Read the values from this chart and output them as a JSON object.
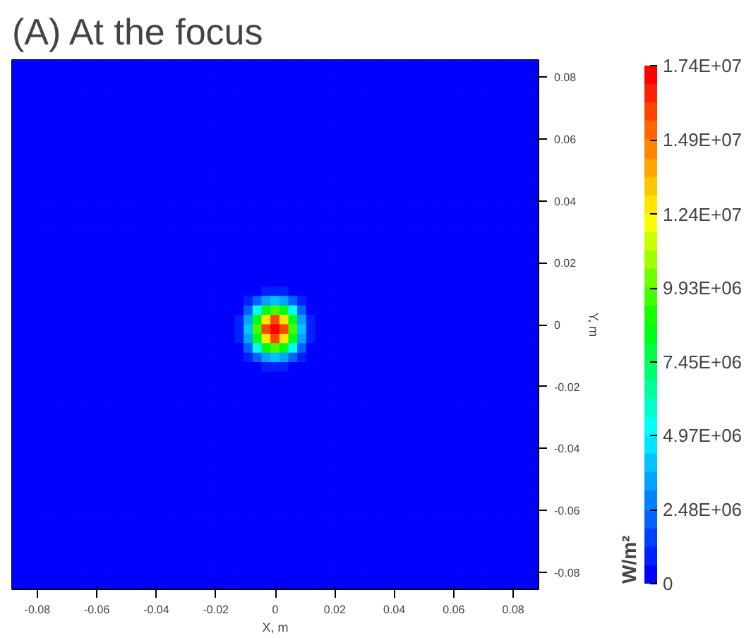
{
  "chart_data": {
    "type": "heatmap",
    "title": "(A) At the focus",
    "xlabel": "X, m",
    "ylabel": "Y, m",
    "clabel": "W/m²",
    "xlim": [
      -0.0885,
      0.0885
    ],
    "ylim": [
      -0.0855,
      0.0855
    ],
    "xticks": [
      -0.08,
      -0.06,
      -0.04,
      -0.02,
      0,
      0.02,
      0.04,
      0.06,
      0.08
    ],
    "yticks": [
      -0.08,
      -0.06,
      -0.04,
      -0.02,
      0,
      0.02,
      0.04,
      0.06,
      0.08
    ],
    "clim": [
      0,
      17400000
    ],
    "cticks": [
      0,
      {
        "value": 2480000,
        "label": "2.48E+06"
      },
      {
        "value": 4970000,
        "label": "4.97E+06"
      },
      {
        "value": 7450000,
        "label": "7.45E+06"
      },
      {
        "value": 9930000,
        "label": "9.93E+06"
      },
      {
        "value": 12400000,
        "label": "1.24E+07"
      },
      {
        "value": 14900000,
        "label": "1.49E+07"
      },
      {
        "value": 17400000,
        "label": "1.74E+07"
      }
    ],
    "cells": [
      [
        0,
        0,
        0,
        0,
        0,
        0,
        0,
        0,
        0,
        0,
        0,
        0,
        0,
        0,
        0,
        0,
        0,
        0,
        0,
        0,
        0,
        0,
        0,
        0,
        0,
        0,
        0,
        0,
        0,
        0,
        0,
        0,
        0,
        0,
        0,
        0,
        0,
        0,
        0,
        0,
        0,
        0,
        0,
        0,
        0,
        0,
        0,
        0,
        0,
        0,
        0,
        0,
        0,
        0,
        0,
        0,
        0,
        0,
        0
      ],
      [
        0,
        0,
        0,
        0,
        0,
        0,
        0,
        0,
        0,
        0,
        0,
        0,
        0,
        0,
        0,
        0,
        0,
        0,
        0,
        0,
        0,
        0,
        0,
        0,
        0,
        0,
        0,
        0,
        0,
        0,
        0,
        0,
        0,
        0,
        0,
        0,
        0,
        0,
        0,
        0,
        0,
        0,
        0,
        0,
        0,
        0,
        0,
        0,
        0,
        0,
        0,
        0,
        0,
        0,
        0,
        0,
        0,
        0,
        0
      ],
      [
        0,
        0,
        0,
        0,
        0,
        0,
        0,
        0,
        0,
        0,
        0,
        0,
        0,
        0,
        0,
        0,
        0,
        0,
        0,
        0,
        0,
        0,
        0,
        0,
        0,
        0,
        0,
        0,
        0,
        0,
        0,
        0,
        0,
        0,
        0,
        0,
        0,
        0,
        0,
        0,
        0,
        0,
        0,
        0,
        0,
        0,
        0,
        0,
        0,
        0,
        0,
        0,
        0,
        0,
        0,
        0,
        0,
        0,
        0
      ],
      [
        0,
        0,
        0,
        0,
        0,
        0,
        0,
        0,
        0,
        0,
        0,
        0,
        0,
        0,
        0,
        0,
        0,
        0,
        0,
        0,
        0,
        0,
        0,
        0,
        0,
        0,
        0,
        0,
        0,
        0,
        0,
        0,
        0,
        0,
        0,
        0,
        0,
        0,
        0,
        0,
        0,
        0,
        0,
        0,
        0,
        0,
        0,
        0,
        0,
        0,
        0,
        0,
        0,
        0,
        0,
        0,
        0,
        0,
        0
      ],
      [
        0,
        0,
        0,
        0,
        0,
        0,
        0,
        0,
        0,
        0,
        0,
        0,
        0,
        0,
        0,
        0,
        0,
        0,
        0,
        0,
        0,
        0,
        0,
        0,
        0,
        0,
        0,
        0,
        0,
        0,
        0,
        0,
        0,
        0,
        0,
        0,
        0,
        0,
        0,
        0,
        0,
        0,
        0,
        0,
        0,
        0,
        0,
        0,
        0,
        0,
        0,
        0,
        0,
        0,
        0,
        0,
        0,
        0,
        0
      ],
      [
        0,
        0,
        0,
        0,
        0,
        0,
        0,
        0,
        0,
        0,
        0,
        0,
        0,
        0,
        0,
        0,
        0,
        0,
        0,
        0,
        0,
        0,
        0,
        0,
        0,
        0,
        0,
        0,
        0,
        0,
        0,
        0,
        0,
        0,
        0,
        0,
        0,
        0,
        0,
        0,
        0,
        0,
        0,
        0,
        0,
        0,
        0,
        0,
        0,
        0,
        0,
        0,
        0,
        0,
        0,
        0,
        0,
        0,
        0
      ],
      [
        0,
        0,
        0,
        0,
        0,
        0,
        0,
        0,
        0,
        0,
        0,
        0,
        0,
        0,
        0,
        0,
        0,
        0,
        0,
        0,
        0,
        0,
        0,
        0,
        0,
        0,
        0,
        0,
        0,
        0,
        0,
        0,
        0,
        0,
        0,
        0,
        0,
        0,
        0,
        0,
        0,
        0,
        0,
        0,
        0,
        0,
        0,
        0,
        0,
        0,
        0,
        0,
        0,
        0,
        0,
        0,
        0,
        0,
        0
      ],
      [
        0,
        0,
        0,
        0,
        0,
        0,
        0,
        0,
        0,
        0,
        0,
        0,
        0,
        0,
        0,
        0,
        0,
        0,
        0,
        0,
        0,
        0,
        0,
        0,
        0,
        0,
        0,
        0,
        0,
        0,
        0,
        0,
        0,
        0,
        0,
        0,
        0,
        0,
        0,
        0,
        0,
        0,
        0,
        0,
        0,
        0,
        0,
        0,
        0,
        0,
        0,
        0,
        0,
        0,
        0,
        0,
        0,
        0,
        0
      ],
      [
        0,
        0,
        0,
        0,
        0,
        0,
        0,
        0,
        0,
        0,
        0,
        0,
        0,
        0,
        0,
        0,
        0,
        0,
        0,
        0,
        0,
        0,
        0,
        0,
        0,
        0,
        0,
        0,
        0,
        0,
        0,
        0,
        0,
        0,
        0,
        0,
        0,
        0,
        0,
        0,
        0,
        0,
        0,
        0,
        0,
        0,
        0,
        0,
        0,
        0,
        0,
        0,
        0,
        0,
        0,
        0,
        0,
        0,
        0
      ],
      [
        0,
        0,
        0,
        0,
        0,
        0,
        0,
        0,
        0,
        0,
        0,
        0,
        0,
        0,
        0,
        0,
        0,
        0,
        0,
        0,
        0,
        0,
        0,
        0,
        0,
        0,
        0,
        0,
        0,
        0,
        0,
        0,
        0,
        0,
        0,
        0,
        0,
        0,
        0,
        0,
        0,
        0,
        0,
        0,
        0,
        0,
        0,
        0,
        0,
        0,
        0,
        0,
        0,
        0,
        0,
        0,
        0,
        0,
        0
      ],
      [
        0,
        0,
        0,
        0,
        0,
        0,
        0,
        0,
        0,
        0,
        0,
        0,
        0,
        0,
        0,
        0,
        0,
        0,
        0,
        0,
        0,
        0,
        0,
        0,
        0,
        0,
        0,
        0,
        0,
        0,
        0,
        0,
        0,
        0,
        0,
        0,
        0,
        0,
        0,
        0,
        0,
        0,
        0,
        0,
        0,
        0,
        0,
        0,
        0,
        0,
        0,
        0,
        0,
        0,
        0,
        0,
        0,
        0,
        0
      ],
      [
        0,
        0,
        0,
        0,
        0,
        0,
        0,
        0,
        0,
        0,
        0,
        0,
        0,
        0,
        0,
        0,
        0,
        0,
        0,
        0,
        0,
        0,
        0,
        0,
        0,
        0,
        0,
        0,
        0,
        0,
        0,
        0,
        0,
        0,
        0,
        0,
        0,
        0,
        0,
        0,
        0,
        0,
        0,
        0,
        0,
        0,
        0,
        0,
        0,
        0,
        0,
        0,
        0,
        0,
        0,
        0,
        0,
        0,
        0
      ],
      [
        0,
        0,
        0,
        0,
        0,
        0,
        0,
        0,
        0,
        0,
        0,
        0,
        0,
        0,
        0,
        0,
        0,
        0,
        0,
        0,
        0,
        0,
        0,
        0,
        0,
        0,
        0,
        0,
        0,
        0,
        0,
        0,
        0,
        0,
        0,
        0,
        0,
        0,
        0,
        0,
        0,
        0,
        0,
        0,
        0,
        0,
        0,
        0,
        0,
        0,
        0,
        0,
        0,
        0,
        0,
        0,
        0,
        0,
        0
      ],
      [
        0,
        0,
        0,
        0,
        0,
        0,
        0,
        0,
        0,
        0,
        0,
        0,
        0,
        0,
        0,
        0,
        0,
        0,
        0,
        0,
        0,
        0,
        0,
        0,
        0,
        0,
        0,
        0,
        0,
        0,
        0,
        0,
        0,
        0,
        0,
        0,
        0,
        0,
        0,
        0,
        0,
        0,
        0,
        0,
        0,
        0,
        0,
        0,
        0,
        0,
        0,
        0,
        0,
        0,
        0,
        0,
        0,
        0,
        0
      ],
      [
        0,
        0,
        0,
        0,
        0,
        0,
        0,
        0,
        0,
        0,
        0,
        0,
        0,
        0,
        0,
        0,
        0,
        0,
        0,
        0,
        0,
        0,
        0,
        0,
        0,
        0,
        0,
        0,
        0,
        0,
        0,
        0,
        0,
        0,
        0,
        0,
        0,
        0,
        0,
        0,
        0,
        0,
        0,
        0,
        0,
        0,
        0,
        0,
        0,
        0,
        0,
        0,
        0,
        0,
        0,
        0,
        0,
        0,
        0
      ],
      [
        0,
        0,
        0,
        0,
        0,
        0,
        0,
        0,
        0,
        0,
        0,
        0,
        0,
        0,
        0,
        0,
        0,
        0,
        0,
        0,
        0,
        0,
        0,
        0,
        0,
        0,
        0,
        0,
        0,
        0,
        0,
        0,
        0,
        0,
        0,
        0,
        0,
        0,
        0,
        0,
        0,
        0,
        0,
        0,
        0,
        0,
        0,
        0,
        0,
        0,
        0,
        0,
        0,
        0,
        0,
        0,
        0,
        0,
        0
      ],
      [
        0,
        0,
        0,
        0,
        0,
        0,
        0,
        0,
        0,
        0,
        0,
        0,
        0,
        0,
        0,
        0,
        0,
        0,
        0,
        0,
        0,
        0,
        0,
        0,
        0,
        0,
        0,
        0,
        0,
        0,
        0,
        0,
        0,
        0,
        0,
        0,
        0,
        0,
        0,
        0,
        0,
        0,
        0,
        0,
        0,
        0,
        0,
        0,
        0,
        0,
        0,
        0,
        0,
        0,
        0,
        0,
        0,
        0,
        0
      ],
      [
        0,
        0,
        0,
        0,
        0,
        0,
        0,
        0,
        0,
        0,
        0,
        0,
        0,
        0,
        0,
        0,
        0,
        0,
        0,
        0,
        0,
        0,
        0,
        0,
        0,
        0,
        0,
        0,
        0,
        0,
        0,
        0,
        0,
        0,
        0,
        0,
        0,
        0,
        0,
        0,
        0,
        0,
        0,
        0,
        0,
        0,
        0,
        0,
        0,
        0,
        0,
        0,
        0,
        0,
        0,
        0,
        0,
        0,
        0
      ],
      [
        0,
        0,
        0,
        0,
        0,
        0,
        0,
        0,
        0,
        0,
        0,
        0,
        0,
        0,
        0,
        0,
        0,
        0,
        0,
        0,
        0,
        0,
        0,
        0,
        0,
        0,
        0,
        0,
        0,
        0,
        0,
        0,
        0,
        0,
        0,
        0,
        0,
        0,
        0,
        0,
        0,
        0,
        0,
        0,
        0,
        0,
        0,
        0,
        0,
        0,
        0,
        0,
        0,
        0,
        0,
        0,
        0,
        0,
        0
      ],
      [
        0,
        0,
        0,
        0,
        0,
        0,
        0,
        0,
        0,
        0,
        0,
        0,
        0,
        0,
        0,
        0,
        0,
        0,
        0,
        0,
        0,
        0,
        0,
        0,
        0,
        0,
        0,
        0,
        0,
        0,
        0,
        0,
        0,
        0,
        0,
        0,
        0,
        0,
        0,
        0,
        0,
        0,
        0,
        0,
        0,
        0,
        0,
        0,
        0,
        0,
        0,
        0,
        0,
        0,
        0,
        0,
        0,
        0,
        0
      ],
      [
        0,
        0,
        0,
        0,
        0,
        0,
        0,
        0,
        0,
        0,
        0,
        0,
        0,
        0,
        0,
        0,
        0,
        0,
        0,
        0,
        0,
        0,
        0,
        0,
        0,
        0,
        0,
        0,
        0,
        0,
        0,
        0,
        0,
        0,
        0,
        0,
        0,
        0,
        0,
        0,
        0,
        0,
        0,
        0,
        0,
        0,
        0,
        0,
        0,
        0,
        0,
        0,
        0,
        0,
        0,
        0,
        0,
        0,
        0
      ],
      [
        0,
        0,
        0,
        0,
        0,
        0,
        0,
        0,
        0,
        0,
        0,
        0,
        0,
        0,
        0,
        0,
        0,
        0,
        0,
        0,
        0,
        0,
        0,
        0,
        0,
        0,
        0,
        0,
        0,
        0,
        0,
        0,
        0,
        0,
        0,
        0,
        0,
        0,
        0,
        0,
        0,
        0,
        0,
        0,
        0,
        0,
        0,
        0,
        0,
        0,
        0,
        0,
        0,
        0,
        0,
        0,
        0,
        0,
        0
      ],
      [
        0,
        0,
        0,
        0,
        0,
        0,
        0,
        0,
        0,
        0,
        0,
        0,
        0,
        0,
        0,
        0,
        0,
        0,
        0,
        0,
        0,
        0,
        0,
        0,
        0,
        0,
        0,
        0,
        0,
        0,
        0,
        0,
        0,
        0,
        0,
        0,
        0,
        0,
        0,
        0,
        0,
        0,
        0,
        0,
        0,
        0,
        0,
        0,
        0,
        0,
        0,
        0,
        0,
        0,
        0,
        0,
        0,
        0,
        0
      ],
      [
        0,
        0,
        0,
        0,
        0,
        0,
        0,
        0,
        0,
        0,
        0,
        0,
        0,
        0,
        0,
        0,
        0,
        0,
        0,
        0,
        0,
        0,
        0,
        0,
        0,
        0,
        0,
        0,
        0,
        0,
        0,
        0,
        0,
        0,
        0,
        0,
        0,
        0,
        0,
        0,
        0,
        0,
        0,
        0,
        0,
        0,
        0,
        0,
        0,
        0,
        0,
        0,
        0,
        0,
        0,
        0,
        0,
        0,
        0
      ],
      [
        0,
        0,
        0,
        0,
        0,
        0,
        0,
        0,
        0,
        0,
        0,
        0,
        0,
        0,
        0,
        0,
        0,
        0,
        0,
        0,
        0,
        0,
        0,
        0,
        0,
        0,
        0,
        500000,
        900000,
        1100000,
        900000,
        500000,
        0,
        0,
        0,
        0,
        0,
        0,
        0,
        0,
        0,
        0,
        0,
        0,
        0,
        0,
        0,
        0,
        0,
        0,
        0,
        0,
        0,
        0,
        0,
        0,
        0,
        0,
        0
      ],
      [
        0,
        0,
        0,
        0,
        0,
        0,
        0,
        0,
        0,
        0,
        0,
        0,
        0,
        0,
        0,
        0,
        0,
        0,
        0,
        0,
        0,
        0,
        0,
        0,
        0,
        0,
        800000,
        2200000,
        3600000,
        4200000,
        3600000,
        2200000,
        800000,
        0,
        0,
        0,
        0,
        0,
        0,
        0,
        0,
        0,
        0,
        0,
        0,
        0,
        0,
        0,
        0,
        0,
        0,
        0,
        0,
        0,
        0,
        0,
        0,
        0,
        0
      ],
      [
        0,
        0,
        0,
        0,
        0,
        0,
        0,
        0,
        0,
        0,
        0,
        0,
        0,
        0,
        0,
        0,
        0,
        0,
        0,
        0,
        0,
        0,
        0,
        0,
        0,
        500000,
        2200000,
        5000000,
        8500000,
        9500000,
        8500000,
        5000000,
        2200000,
        500000,
        0,
        0,
        0,
        0,
        0,
        0,
        0,
        0,
        0,
        0,
        0,
        0,
        0,
        0,
        0,
        0,
        0,
        0,
        0,
        0,
        0,
        0,
        0,
        0,
        0
      ],
      [
        0,
        0,
        0,
        0,
        0,
        0,
        0,
        0,
        0,
        0,
        0,
        0,
        0,
        0,
        0,
        0,
        0,
        0,
        0,
        0,
        0,
        0,
        0,
        0,
        0,
        900000,
        3600000,
        8500000,
        13000000,
        16000000,
        13000000,
        8500000,
        3600000,
        900000,
        0,
        0,
        0,
        0,
        0,
        0,
        0,
        0,
        0,
        0,
        0,
        0,
        0,
        0,
        0,
        0,
        0,
        0,
        0,
        0,
        0,
        0,
        0,
        0,
        0
      ],
      [
        0,
        0,
        0,
        0,
        0,
        0,
        0,
        0,
        0,
        0,
        0,
        0,
        0,
        0,
        0,
        0,
        0,
        0,
        0,
        0,
        0,
        0,
        0,
        0,
        0,
        1100000,
        4200000,
        9500000,
        16000000,
        17400000,
        16000000,
        9500000,
        4200000,
        1100000,
        0,
        0,
        0,
        0,
        0,
        0,
        0,
        0,
        0,
        0,
        0,
        0,
        0,
        0,
        0,
        0,
        0,
        0,
        0,
        0,
        0,
        0,
        0,
        0,
        0
      ],
      [
        0,
        0,
        0,
        0,
        0,
        0,
        0,
        0,
        0,
        0,
        0,
        0,
        0,
        0,
        0,
        0,
        0,
        0,
        0,
        0,
        0,
        0,
        0,
        0,
        0,
        900000,
        3600000,
        8500000,
        13000000,
        16000000,
        13000000,
        8500000,
        3600000,
        900000,
        0,
        0,
        0,
        0,
        0,
        0,
        0,
        0,
        0,
        0,
        0,
        0,
        0,
        0,
        0,
        0,
        0,
        0,
        0,
        0,
        0,
        0,
        0,
        0,
        0
      ],
      [
        0,
        0,
        0,
        0,
        0,
        0,
        0,
        0,
        0,
        0,
        0,
        0,
        0,
        0,
        0,
        0,
        0,
        0,
        0,
        0,
        0,
        0,
        0,
        0,
        0,
        500000,
        2200000,
        5000000,
        8500000,
        9500000,
        8500000,
        5000000,
        2200000,
        500000,
        0,
        0,
        0,
        0,
        0,
        0,
        0,
        0,
        0,
        0,
        0,
        0,
        0,
        0,
        0,
        0,
        0,
        0,
        0,
        0,
        0,
        0,
        0,
        0,
        0
      ],
      [
        0,
        0,
        0,
        0,
        0,
        0,
        0,
        0,
        0,
        0,
        0,
        0,
        0,
        0,
        0,
        0,
        0,
        0,
        0,
        0,
        0,
        0,
        0,
        0,
        0,
        0,
        800000,
        2200000,
        3600000,
        4200000,
        3600000,
        2200000,
        800000,
        0,
        0,
        0,
        0,
        0,
        0,
        0,
        0,
        0,
        0,
        0,
        0,
        0,
        0,
        0,
        0,
        0,
        0,
        0,
        0,
        0,
        0,
        0,
        0,
        0,
        0
      ],
      [
        0,
        0,
        0,
        0,
        0,
        0,
        0,
        0,
        0,
        0,
        0,
        0,
        0,
        0,
        0,
        0,
        0,
        0,
        0,
        0,
        0,
        0,
        0,
        0,
        0,
        0,
        0,
        500000,
        900000,
        1100000,
        900000,
        500000,
        0,
        0,
        0,
        0,
        0,
        0,
        0,
        0,
        0,
        0,
        0,
        0,
        0,
        0,
        0,
        0,
        0,
        0,
        0,
        0,
        0,
        0,
        0,
        0,
        0,
        0,
        0
      ],
      [
        0,
        0,
        0,
        0,
        0,
        0,
        0,
        0,
        0,
        0,
        0,
        0,
        0,
        0,
        0,
        0,
        0,
        0,
        0,
        0,
        0,
        0,
        0,
        0,
        0,
        0,
        0,
        0,
        0,
        0,
        0,
        0,
        0,
        0,
        0,
        0,
        0,
        0,
        0,
        0,
        0,
        0,
        0,
        0,
        0,
        0,
        0,
        0,
        0,
        0,
        0,
        0,
        0,
        0,
        0,
        0,
        0,
        0,
        0
      ],
      [
        0,
        0,
        0,
        0,
        0,
        0,
        0,
        0,
        0,
        0,
        0,
        0,
        0,
        0,
        0,
        0,
        0,
        0,
        0,
        0,
        0,
        0,
        0,
        0,
        0,
        0,
        0,
        0,
        0,
        0,
        0,
        0,
        0,
        0,
        0,
        0,
        0,
        0,
        0,
        0,
        0,
        0,
        0,
        0,
        0,
        0,
        0,
        0,
        0,
        0,
        0,
        0,
        0,
        0,
        0,
        0,
        0,
        0,
        0
      ],
      [
        0,
        0,
        0,
        0,
        0,
        0,
        0,
        0,
        0,
        0,
        0,
        0,
        0,
        0,
        0,
        0,
        0,
        0,
        0,
        0,
        0,
        0,
        0,
        0,
        0,
        0,
        0,
        0,
        0,
        0,
        0,
        0,
        0,
        0,
        0,
        0,
        0,
        0,
        0,
        0,
        0,
        0,
        0,
        0,
        0,
        0,
        0,
        0,
        0,
        0,
        0,
        0,
        0,
        0,
        0,
        0,
        0,
        0,
        0
      ],
      [
        0,
        0,
        0,
        0,
        0,
        0,
        0,
        0,
        0,
        0,
        0,
        0,
        0,
        0,
        0,
        0,
        0,
        0,
        0,
        0,
        0,
        0,
        0,
        0,
        0,
        0,
        0,
        0,
        0,
        0,
        0,
        0,
        0,
        0,
        0,
        0,
        0,
        0,
        0,
        0,
        0,
        0,
        0,
        0,
        0,
        0,
        0,
        0,
        0,
        0,
        0,
        0,
        0,
        0,
        0,
        0,
        0,
        0,
        0
      ],
      [
        0,
        0,
        0,
        0,
        0,
        0,
        0,
        0,
        0,
        0,
        0,
        0,
        0,
        0,
        0,
        0,
        0,
        0,
        0,
        0,
        0,
        0,
        0,
        0,
        0,
        0,
        0,
        0,
        0,
        0,
        0,
        0,
        0,
        0,
        0,
        0,
        0,
        0,
        0,
        0,
        0,
        0,
        0,
        0,
        0,
        0,
        0,
        0,
        0,
        0,
        0,
        0,
        0,
        0,
        0,
        0,
        0,
        0,
        0
      ],
      [
        0,
        0,
        0,
        0,
        0,
        0,
        0,
        0,
        0,
        0,
        0,
        0,
        0,
        0,
        0,
        0,
        0,
        0,
        0,
        0,
        0,
        0,
        0,
        0,
        0,
        0,
        0,
        0,
        0,
        0,
        0,
        0,
        0,
        0,
        0,
        0,
        0,
        0,
        0,
        0,
        0,
        0,
        0,
        0,
        0,
        0,
        0,
        0,
        0,
        0,
        0,
        0,
        0,
        0,
        0,
        0,
        0,
        0,
        0
      ],
      [
        0,
        0,
        0,
        0,
        0,
        0,
        0,
        0,
        0,
        0,
        0,
        0,
        0,
        0,
        0,
        0,
        0,
        0,
        0,
        0,
        0,
        0,
        0,
        0,
        0,
        0,
        0,
        0,
        0,
        0,
        0,
        0,
        0,
        0,
        0,
        0,
        0,
        0,
        0,
        0,
        0,
        0,
        0,
        0,
        0,
        0,
        0,
        0,
        0,
        0,
        0,
        0,
        0,
        0,
        0,
        0,
        0,
        0,
        0
      ],
      [
        0,
        0,
        0,
        0,
        0,
        0,
        0,
        0,
        0,
        0,
        0,
        0,
        0,
        0,
        0,
        0,
        0,
        0,
        0,
        0,
        0,
        0,
        0,
        0,
        0,
        0,
        0,
        0,
        0,
        0,
        0,
        0,
        0,
        0,
        0,
        0,
        0,
        0,
        0,
        0,
        0,
        0,
        0,
        0,
        0,
        0,
        0,
        0,
        0,
        0,
        0,
        0,
        0,
        0,
        0,
        0,
        0,
        0,
        0
      ],
      [
        0,
        0,
        0,
        0,
        0,
        0,
        0,
        0,
        0,
        0,
        0,
        0,
        0,
        0,
        0,
        0,
        0,
        0,
        0,
        0,
        0,
        0,
        0,
        0,
        0,
        0,
        0,
        0,
        0,
        0,
        0,
        0,
        0,
        0,
        0,
        0,
        0,
        0,
        0,
        0,
        0,
        0,
        0,
        0,
        0,
        0,
        0,
        0,
        0,
        0,
        0,
        0,
        0,
        0,
        0,
        0,
        0,
        0,
        0
      ],
      [
        0,
        0,
        0,
        0,
        0,
        0,
        0,
        0,
        0,
        0,
        0,
        0,
        0,
        0,
        0,
        0,
        0,
        0,
        0,
        0,
        0,
        0,
        0,
        0,
        0,
        0,
        0,
        0,
        0,
        0,
        0,
        0,
        0,
        0,
        0,
        0,
        0,
        0,
        0,
        0,
        0,
        0,
        0,
        0,
        0,
        0,
        0,
        0,
        0,
        0,
        0,
        0,
        0,
        0,
        0,
        0,
        0,
        0,
        0
      ],
      [
        0,
        0,
        0,
        0,
        0,
        0,
        0,
        0,
        0,
        0,
        0,
        0,
        0,
        0,
        0,
        0,
        0,
        0,
        0,
        0,
        0,
        0,
        0,
        0,
        0,
        0,
        0,
        0,
        0,
        0,
        0,
        0,
        0,
        0,
        0,
        0,
        0,
        0,
        0,
        0,
        0,
        0,
        0,
        0,
        0,
        0,
        0,
        0,
        0,
        0,
        0,
        0,
        0,
        0,
        0,
        0,
        0,
        0,
        0
      ],
      [
        0,
        0,
        0,
        0,
        0,
        0,
        0,
        0,
        0,
        0,
        0,
        0,
        0,
        0,
        0,
        0,
        0,
        0,
        0,
        0,
        0,
        0,
        0,
        0,
        0,
        0,
        0,
        0,
        0,
        0,
        0,
        0,
        0,
        0,
        0,
        0,
        0,
        0,
        0,
        0,
        0,
        0,
        0,
        0,
        0,
        0,
        0,
        0,
        0,
        0,
        0,
        0,
        0,
        0,
        0,
        0,
        0,
        0,
        0
      ],
      [
        0,
        0,
        0,
        0,
        0,
        0,
        0,
        0,
        0,
        0,
        0,
        0,
        0,
        0,
        0,
        0,
        0,
        0,
        0,
        0,
        0,
        0,
        0,
        0,
        0,
        0,
        0,
        0,
        0,
        0,
        0,
        0,
        0,
        0,
        0,
        0,
        0,
        0,
        0,
        0,
        0,
        0,
        0,
        0,
        0,
        0,
        0,
        0,
        0,
        0,
        0,
        0,
        0,
        0,
        0,
        0,
        0,
        0,
        0
      ],
      [
        0,
        0,
        0,
        0,
        0,
        0,
        0,
        0,
        0,
        0,
        0,
        0,
        0,
        0,
        0,
        0,
        0,
        0,
        0,
        0,
        0,
        0,
        0,
        0,
        0,
        0,
        0,
        0,
        0,
        0,
        0,
        0,
        0,
        0,
        0,
        0,
        0,
        0,
        0,
        0,
        0,
        0,
        0,
        0,
        0,
        0,
        0,
        0,
        0,
        0,
        0,
        0,
        0,
        0,
        0,
        0,
        0,
        0,
        0
      ],
      [
        0,
        0,
        0,
        0,
        0,
        0,
        0,
        0,
        0,
        0,
        0,
        0,
        0,
        0,
        0,
        0,
        0,
        0,
        0,
        0,
        0,
        0,
        0,
        0,
        0,
        0,
        0,
        0,
        0,
        0,
        0,
        0,
        0,
        0,
        0,
        0,
        0,
        0,
        0,
        0,
        0,
        0,
        0,
        0,
        0,
        0,
        0,
        0,
        0,
        0,
        0,
        0,
        0,
        0,
        0,
        0,
        0,
        0,
        0
      ],
      [
        0,
        0,
        0,
        0,
        0,
        0,
        0,
        0,
        0,
        0,
        0,
        0,
        0,
        0,
        0,
        0,
        0,
        0,
        0,
        0,
        0,
        0,
        0,
        0,
        0,
        0,
        0,
        0,
        0,
        0,
        0,
        0,
        0,
        0,
        0,
        0,
        0,
        0,
        0,
        0,
        0,
        0,
        0,
        0,
        0,
        0,
        0,
        0,
        0,
        0,
        0,
        0,
        0,
        0,
        0,
        0,
        0,
        0,
        0
      ],
      [
        0,
        0,
        0,
        0,
        0,
        0,
        0,
        0,
        0,
        0,
        0,
        0,
        0,
        0,
        0,
        0,
        0,
        0,
        0,
        0,
        0,
        0,
        0,
        0,
        0,
        0,
        0,
        0,
        0,
        0,
        0,
        0,
        0,
        0,
        0,
        0,
        0,
        0,
        0,
        0,
        0,
        0,
        0,
        0,
        0,
        0,
        0,
        0,
        0,
        0,
        0,
        0,
        0,
        0,
        0,
        0,
        0,
        0,
        0
      ],
      [
        0,
        0,
        0,
        0,
        0,
        0,
        0,
        0,
        0,
        0,
        0,
        0,
        0,
        0,
        0,
        0,
        0,
        0,
        0,
        0,
        0,
        0,
        0,
        0,
        0,
        0,
        0,
        0,
        0,
        0,
        0,
        0,
        0,
        0,
        0,
        0,
        0,
        0,
        0,
        0,
        0,
        0,
        0,
        0,
        0,
        0,
        0,
        0,
        0,
        0,
        0,
        0,
        0,
        0,
        0,
        0,
        0,
        0,
        0
      ],
      [
        0,
        0,
        0,
        0,
        0,
        0,
        0,
        0,
        0,
        0,
        0,
        0,
        0,
        0,
        0,
        0,
        0,
        0,
        0,
        0,
        0,
        0,
        0,
        0,
        0,
        0,
        0,
        0,
        0,
        0,
        0,
        0,
        0,
        0,
        0,
        0,
        0,
        0,
        0,
        0,
        0,
        0,
        0,
        0,
        0,
        0,
        0,
        0,
        0,
        0,
        0,
        0,
        0,
        0,
        0,
        0,
        0,
        0,
        0
      ],
      [
        0,
        0,
        0,
        0,
        0,
        0,
        0,
        0,
        0,
        0,
        0,
        0,
        0,
        0,
        0,
        0,
        0,
        0,
        0,
        0,
        0,
        0,
        0,
        0,
        0,
        0,
        0,
        0,
        0,
        0,
        0,
        0,
        0,
        0,
        0,
        0,
        0,
        0,
        0,
        0,
        0,
        0,
        0,
        0,
        0,
        0,
        0,
        0,
        0,
        0,
        0,
        0,
        0,
        0,
        0,
        0,
        0,
        0,
        0
      ],
      [
        0,
        0,
        0,
        0,
        0,
        0,
        0,
        0,
        0,
        0,
        0,
        0,
        0,
        0,
        0,
        0,
        0,
        0,
        0,
        0,
        0,
        0,
        0,
        0,
        0,
        0,
        0,
        0,
        0,
        0,
        0,
        0,
        0,
        0,
        0,
        0,
        0,
        0,
        0,
        0,
        0,
        0,
        0,
        0,
        0,
        0,
        0,
        0,
        0,
        0,
        0,
        0,
        0,
        0,
        0,
        0,
        0,
        0,
        0
      ],
      [
        0,
        0,
        0,
        0,
        0,
        0,
        0,
        0,
        0,
        0,
        0,
        0,
        0,
        0,
        0,
        0,
        0,
        0,
        0,
        0,
        0,
        0,
        0,
        0,
        0,
        0,
        0,
        0,
        0,
        0,
        0,
        0,
        0,
        0,
        0,
        0,
        0,
        0,
        0,
        0,
        0,
        0,
        0,
        0,
        0,
        0,
        0,
        0,
        0,
        0,
        0,
        0,
        0,
        0,
        0,
        0,
        0,
        0,
        0
      ],
      [
        0,
        0,
        0,
        0,
        0,
        0,
        0,
        0,
        0,
        0,
        0,
        0,
        0,
        0,
        0,
        0,
        0,
        0,
        0,
        0,
        0,
        0,
        0,
        0,
        0,
        0,
        0,
        0,
        0,
        0,
        0,
        0,
        0,
        0,
        0,
        0,
        0,
        0,
        0,
        0,
        0,
        0,
        0,
        0,
        0,
        0,
        0,
        0,
        0,
        0,
        0,
        0,
        0,
        0,
        0,
        0,
        0,
        0,
        0
      ]
    ]
  }
}
